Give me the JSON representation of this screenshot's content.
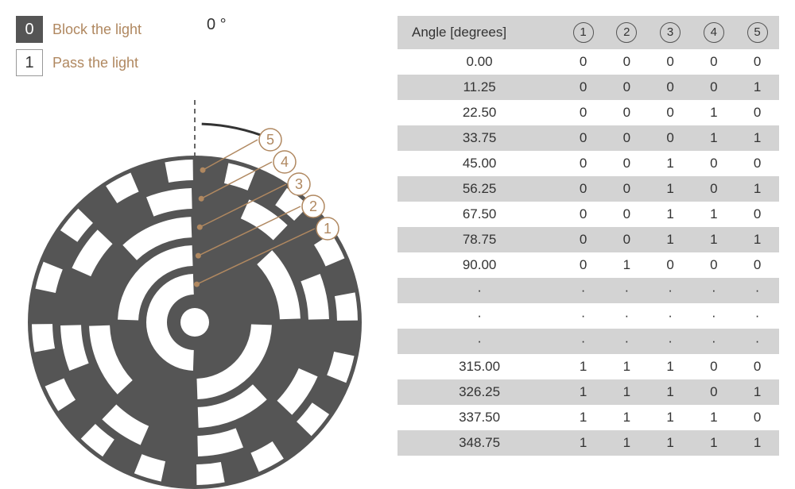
{
  "legend": {
    "block": {
      "digit": "0",
      "text": "Block the light"
    },
    "pass": {
      "digit": "1",
      "text": "Pass the light"
    }
  },
  "zero_label": "0 °",
  "colors": {
    "disk": "#555555",
    "slot": "#ffffff",
    "accent": "#b08860",
    "table_header_bg": "#d3d3d3",
    "table_stripe_bg": "#d3d3d3",
    "text": "#333333"
  },
  "encoder": {
    "tracks": 5,
    "track_labels": [
      "1",
      "2",
      "3",
      "4",
      "5"
    ],
    "radius_outer": 210,
    "radius_inner_hole": 18,
    "slot_radial_thickness": 26,
    "track_gap": 10
  },
  "table": {
    "header": [
      "Angle [degrees]",
      "①",
      "②",
      "③",
      "④",
      "⑤"
    ],
    "rows": [
      [
        "0.00",
        "0",
        "0",
        "0",
        "0",
        "0"
      ],
      [
        "11.25",
        "0",
        "0",
        "0",
        "0",
        "1"
      ],
      [
        "22.50",
        "0",
        "0",
        "0",
        "1",
        "0"
      ],
      [
        "33.75",
        "0",
        "0",
        "0",
        "1",
        "1"
      ],
      [
        "45.00",
        "0",
        "0",
        "1",
        "0",
        "0"
      ],
      [
        "56.25",
        "0",
        "0",
        "1",
        "0",
        "1"
      ],
      [
        "67.50",
        "0",
        "0",
        "1",
        "1",
        "0"
      ],
      [
        "78.75",
        "0",
        "0",
        "1",
        "1",
        "1"
      ],
      [
        "90.00",
        "0",
        "1",
        "0",
        "0",
        "0"
      ],
      [
        "·",
        "·",
        "·",
        "·",
        "·",
        "·"
      ],
      [
        "·",
        "·",
        "·",
        "·",
        "·",
        "·"
      ],
      [
        "·",
        "·",
        "·",
        "·",
        "·",
        "·"
      ],
      [
        "315.00",
        "1",
        "1",
        "1",
        "0",
        "0"
      ],
      [
        "326.25",
        "1",
        "1",
        "1",
        "0",
        "1"
      ],
      [
        "337.50",
        "1",
        "1",
        "1",
        "1",
        "0"
      ],
      [
        "348.75",
        "1",
        "1",
        "1",
        "1",
        "1"
      ]
    ]
  }
}
